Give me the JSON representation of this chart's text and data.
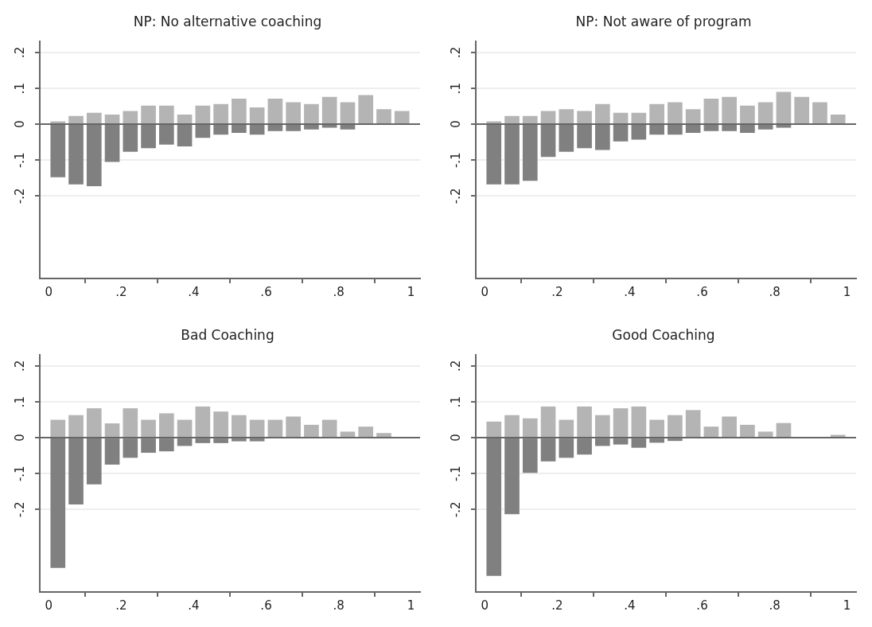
{
  "chart_data": [
    {
      "type": "bar",
      "title": "NP: No alternative coaching",
      "stacked": true,
      "grid": "y",
      "x": [
        0.025,
        0.075,
        0.125,
        0.175,
        0.225,
        0.275,
        0.325,
        0.375,
        0.425,
        0.475,
        0.525,
        0.575,
        0.625,
        0.675,
        0.725,
        0.775,
        0.825,
        0.875,
        0.925,
        0.975
      ],
      "series": [
        {
          "color": "#b4b4b4",
          "values": [
            0.008,
            0.023,
            0.032,
            0.027,
            0.037,
            0.052,
            0.052,
            0.027,
            0.052,
            0.056,
            0.071,
            0.047,
            0.071,
            0.061,
            0.056,
            0.076,
            0.061,
            0.081,
            0.042,
            0.037
          ]
        },
        {
          "color": "#808080",
          "values": [
            -0.148,
            -0.168,
            -0.173,
            -0.105,
            -0.077,
            -0.067,
            -0.057,
            -0.062,
            -0.038,
            -0.029,
            -0.024,
            -0.029,
            -0.019,
            -0.019,
            -0.015,
            -0.01,
            -0.015,
            0,
            0,
            0
          ]
        }
      ],
      "xlim": [
        -0.025,
        1.025
      ],
      "xticks": [
        {
          "value": 0,
          "label": "0"
        },
        {
          "value": 0.2,
          "label": ".2"
        },
        {
          "value": 0.4,
          "label": ".4"
        },
        {
          "value": 0.6,
          "label": ".6"
        },
        {
          "value": 0.8,
          "label": ".8"
        },
        {
          "value": 1,
          "label": "1"
        }
      ],
      "ylim": [
        -0.43,
        0.23
      ],
      "yticks": [
        {
          "value": -0.2,
          "label": "-.2"
        },
        {
          "value": -0.1,
          "label": "-.1"
        },
        {
          "value": 0,
          "label": "0"
        },
        {
          "value": 0.1,
          "label": ".1"
        },
        {
          "value": 0.2,
          "label": ".2"
        }
      ],
      "ref_lines": [
        {
          "axis": "y",
          "value": 0,
          "color": "#666666"
        }
      ]
    },
    {
      "type": "bar",
      "title": "NP: Not aware of program",
      "stacked": true,
      "grid": "y",
      "x": [
        0.025,
        0.075,
        0.125,
        0.175,
        0.225,
        0.275,
        0.325,
        0.375,
        0.425,
        0.475,
        0.525,
        0.575,
        0.625,
        0.675,
        0.725,
        0.775,
        0.825,
        0.875,
        0.925,
        0.975
      ],
      "series": [
        {
          "color": "#b4b4b4",
          "values": [
            0.008,
            0.023,
            0.023,
            0.037,
            0.042,
            0.037,
            0.056,
            0.032,
            0.032,
            0.056,
            0.061,
            0.042,
            0.071,
            0.076,
            0.052,
            0.061,
            0.09,
            0.076,
            0.061,
            0.027
          ]
        },
        {
          "color": "#808080",
          "values": [
            -0.168,
            -0.168,
            -0.158,
            -0.091,
            -0.077,
            -0.067,
            -0.072,
            -0.048,
            -0.043,
            -0.029,
            -0.029,
            -0.024,
            -0.019,
            -0.019,
            -0.024,
            -0.015,
            -0.01,
            0,
            0,
            0
          ]
        }
      ],
      "xlim": [
        -0.025,
        1.025
      ],
      "xticks": [
        {
          "value": 0,
          "label": "0"
        },
        {
          "value": 0.2,
          "label": ".2"
        },
        {
          "value": 0.4,
          "label": ".4"
        },
        {
          "value": 0.6,
          "label": ".6"
        },
        {
          "value": 0.8,
          "label": ".8"
        },
        {
          "value": 1,
          "label": "1"
        }
      ],
      "ylim": [
        -0.43,
        0.23
      ],
      "yticks": [
        {
          "value": -0.2,
          "label": "-.2"
        },
        {
          "value": -0.1,
          "label": "-.1"
        },
        {
          "value": 0,
          "label": "0"
        },
        {
          "value": 0.1,
          "label": ".1"
        },
        {
          "value": 0.2,
          "label": ".2"
        }
      ],
      "ref_lines": [
        {
          "axis": "y",
          "value": 0,
          "color": "#666666"
        }
      ]
    },
    {
      "type": "bar",
      "title": "Bad Coaching",
      "stacked": true,
      "grid": "y",
      "x": [
        0.025,
        0.075,
        0.125,
        0.175,
        0.225,
        0.275,
        0.325,
        0.375,
        0.425,
        0.475,
        0.525,
        0.575,
        0.625,
        0.675,
        0.725,
        0.775,
        0.825,
        0.875,
        0.925,
        0.975
      ],
      "series": [
        {
          "color": "#b4b4b4",
          "values": [
            0.05,
            0.063,
            0.082,
            0.04,
            0.082,
            0.05,
            0.068,
            0.05,
            0.087,
            0.073,
            0.063,
            0.05,
            0.05,
            0.059,
            0.036,
            0.05,
            0.017,
            0.031,
            0.013,
            0
          ]
        },
        {
          "color": "#808080",
          "values": [
            -0.363,
            -0.186,
            -0.13,
            -0.075,
            -0.056,
            -0.042,
            -0.038,
            -0.023,
            -0.015,
            -0.015,
            -0.01,
            -0.01,
            0,
            0,
            0,
            0,
            0,
            0,
            0,
            0
          ]
        }
      ],
      "xlim": [
        -0.025,
        1.025
      ],
      "xticks": [
        {
          "value": 0,
          "label": "0"
        },
        {
          "value": 0.2,
          "label": ".2"
        },
        {
          "value": 0.4,
          "label": ".4"
        },
        {
          "value": 0.6,
          "label": ".6"
        },
        {
          "value": 0.8,
          "label": ".8"
        },
        {
          "value": 1,
          "label": "1"
        }
      ],
      "ylim": [
        -0.43,
        0.23
      ],
      "yticks": [
        {
          "value": -0.2,
          "label": "-.2"
        },
        {
          "value": -0.1,
          "label": "-.1"
        },
        {
          "value": 0,
          "label": "0"
        },
        {
          "value": 0.1,
          "label": ".1"
        },
        {
          "value": 0.2,
          "label": ".2"
        }
      ],
      "ref_lines": [
        {
          "axis": "y",
          "value": 0,
          "color": "#666666"
        }
      ]
    },
    {
      "type": "bar",
      "title": "Good Coaching",
      "stacked": true,
      "grid": "y",
      "x": [
        0.025,
        0.075,
        0.125,
        0.175,
        0.225,
        0.275,
        0.325,
        0.375,
        0.425,
        0.475,
        0.525,
        0.575,
        0.625,
        0.675,
        0.725,
        0.775,
        0.825,
        0.875,
        0.925,
        0.975
      ],
      "series": [
        {
          "color": "#b4b4b4",
          "values": [
            0.045,
            0.063,
            0.054,
            0.087,
            0.05,
            0.087,
            0.063,
            0.082,
            0.087,
            0.05,
            0.063,
            0.077,
            0.031,
            0.059,
            0.036,
            0.017,
            0.041,
            null,
            null,
            0.008
          ]
        },
        {
          "color": "#808080",
          "values": [
            -0.385,
            -0.213,
            -0.098,
            -0.066,
            -0.056,
            -0.047,
            -0.023,
            -0.019,
            -0.028,
            -0.014,
            -0.009,
            0,
            0,
            0,
            0,
            0,
            0,
            0,
            0,
            0
          ]
        }
      ],
      "xlim": [
        -0.025,
        1.025
      ],
      "xticks": [
        {
          "value": 0,
          "label": "0"
        },
        {
          "value": 0.2,
          "label": ".2"
        },
        {
          "value": 0.4,
          "label": ".4"
        },
        {
          "value": 0.6,
          "label": ".6"
        },
        {
          "value": 0.8,
          "label": ".8"
        },
        {
          "value": 1,
          "label": "1"
        }
      ],
      "ylim": [
        -0.43,
        0.23
      ],
      "yticks": [
        {
          "value": -0.2,
          "label": "-.2"
        },
        {
          "value": -0.1,
          "label": "-.1"
        },
        {
          "value": 0,
          "label": "0"
        },
        {
          "value": 0.1,
          "label": ".1"
        },
        {
          "value": 0.2,
          "label": ".2"
        }
      ],
      "ref_lines": [
        {
          "axis": "y",
          "value": 0,
          "color": "#666666"
        }
      ]
    }
  ]
}
